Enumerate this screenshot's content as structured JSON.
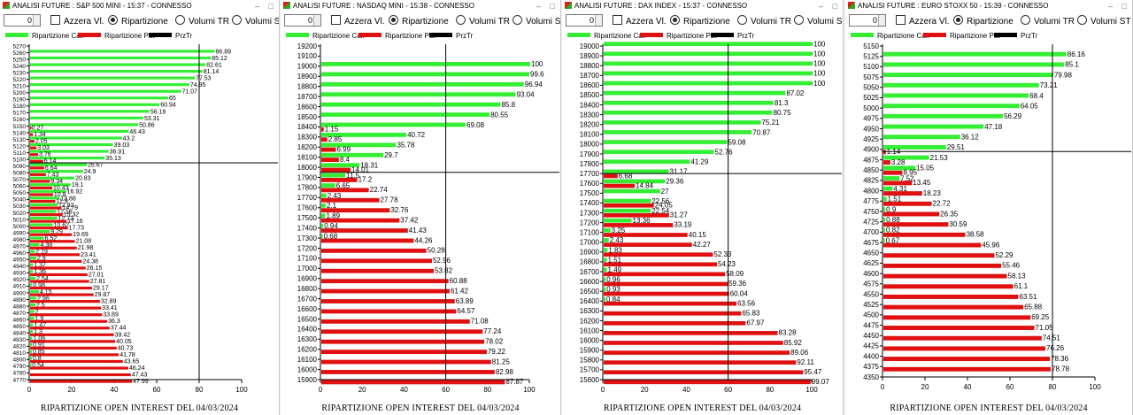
{
  "panels": [
    {
      "title": "ANALISI FUTURE : S&P 500 MINI - 15:37 - CONNESSO",
      "spin_value": "0",
      "cb_azzera": "Azzera Vl.",
      "rb_ripartizione": "Ripartizione",
      "rb_volumi_tr": "Volumi TR",
      "rb_volumi_st": "Volumi ST",
      "legend_call": "Ripartizione Call",
      "legend_put": "Ripartizione Put",
      "legend_prz": "PrzTr",
      "footer": "RIPARTIZIONE OPEN INTEREST DEL 04/03/2024",
      "chart_data": {
        "type": "bar",
        "orientation": "horizontal",
        "categories": [
          "5270",
          "5260",
          "5250",
          "5240",
          "5230",
          "5220",
          "5210",
          "5200",
          "5190",
          "5180",
          "5170",
          "5160",
          "5150",
          "5140",
          "5130",
          "5120",
          "5110",
          "5100",
          "5090",
          "5080",
          "5070",
          "5060",
          "5050",
          "5040",
          "5030",
          "5020",
          "5010",
          "5000",
          "4990",
          "4980",
          "4970",
          "4960",
          "4950",
          "4940",
          "4930",
          "4920",
          "4910",
          "4900",
          "4890",
          "4880",
          "4870",
          "4860",
          "4850",
          "4840",
          "4830",
          "4820",
          "4810",
          "4800",
          "4790",
          "4780",
          "4770"
        ],
        "series": [
          {
            "name": "Ripartizione Call",
            "color": "#33ee33",
            "values": [
              null,
              86.89,
              85.12,
              82.61,
              81.14,
              77.53,
              74.95,
              71.07,
              65,
              60.94,
              56.18,
              53.31,
              50.86,
              46.43,
              43.2,
              39.03,
              36.91,
              35.13,
              26.67,
              24.9,
              20.83,
              19.1,
              16.92,
              13.88,
              12.92,
              12.16,
              12.73,
              10.62,
              9.29,
              6.52,
              4.38,
              2.19,
              2.9,
              1.37,
              1.36,
              2.54,
              0.98,
              4.15,
              2.96,
              2.5,
              2,
              1.9,
              1.47,
              1.3,
              1.06,
              0.91,
              0.85,
              0.8,
              0.54,
              null,
              null
            ]
          },
          {
            "name": "Ripartizione Put",
            "color": "#e01010",
            "values": [
              null,
              null,
              null,
              null,
              null,
              null,
              null,
              null,
              null,
              null,
              null,
              null,
              0.27,
              1.34,
              2.05,
              3.03,
              3.76,
              6.14,
              6.64,
              7.43,
              9.34,
              10.43,
              10.8,
              11.9,
              14.79,
              15.32,
              17.16,
              17.73,
              19.69,
              21.08,
              21.98,
              23.41,
              24.38,
              26.15,
              27.01,
              27.81,
              29.17,
              29.87,
              32.89,
              33.41,
              33.89,
              36.3,
              37.44,
              39.42,
              40.05,
              40.73,
              41.78,
              43.65,
              46.24,
              47.43,
              47.99
            ]
          }
        ],
        "xlim": [
          0,
          100
        ],
        "xticks": [
          0,
          20,
          40,
          60,
          80,
          100
        ],
        "prz_tr": "5095"
      }
    },
    {
      "title": "ANALISI FUTURE : NASDAQ MINI - 15:38 - CONNESSO",
      "spin_value": "0",
      "cb_azzera": "Azzera Vl.",
      "rb_ripartizione": "Ripartizione",
      "rb_volumi_tr": "Volumi TR",
      "rb_volumi_st": "Volumi ST",
      "legend_call": "Ripartizione Call",
      "legend_put": "Ripartizione Put",
      "legend_prz": "PrzTr",
      "footer": "RIPARTIZIONE OPEN INTEREST DEL 04/03/2024",
      "chart_data": {
        "type": "bar",
        "orientation": "horizontal",
        "categories": [
          "19200",
          "19100",
          "19000",
          "18900",
          "18800",
          "18700",
          "18600",
          "18500",
          "18400",
          "18300",
          "18200",
          "18100",
          "18000",
          "17900",
          "17800",
          "17700",
          "17600",
          "17500",
          "17400",
          "17300",
          "17200",
          "17100",
          "17000",
          "16900",
          "16800",
          "16700",
          "16600",
          "16500",
          "16400",
          "16300",
          "16200",
          "16100",
          "16000",
          "15900"
        ],
        "series": [
          {
            "name": "Ripartizione Call",
            "color": "#33ee33",
            "values": [
              null,
              null,
              100,
              99.6,
              96.94,
              93.04,
              85.8,
              80.55,
              69.08,
              40.72,
              35.78,
              29.7,
              18.31,
              11.5,
              6.65,
              2.43,
              2.1,
              1.89,
              0.94,
              0.68,
              null,
              null,
              null,
              null,
              null,
              null,
              null,
              null,
              null,
              null,
              null,
              null,
              null,
              null
            ]
          },
          {
            "name": "Ripartizione Put",
            "color": "#e01010",
            "values": [
              null,
              null,
              null,
              null,
              null,
              null,
              null,
              null,
              1.15,
              2.85,
              6.99,
              8.4,
              14.01,
              17.2,
              22.74,
              27.78,
              32.76,
              37.42,
              41.43,
              44.26,
              50.28,
              52.96,
              53.82,
              60.88,
              61.42,
              63.89,
              64.57,
              71.08,
              77.24,
              78.02,
              79.22,
              81.25,
              82.98,
              87.87
            ]
          }
        ],
        "xlim": [
          0,
          100
        ],
        "xticks": [
          0,
          20,
          40,
          60,
          80,
          100
        ],
        "prz_tr": "17950"
      }
    },
    {
      "title": "ANALISI FUTURE : DAX INDEX - 15:37 - CONNESSO",
      "spin_value": "0",
      "cb_azzera": "Azzera Vl.",
      "rb_ripartizione": "Ripartizione",
      "rb_volumi_tr": "Volumi TR",
      "rb_volumi_st": "Volumi ST",
      "legend_call": "Ripartizione Call",
      "legend_put": "Ripartizione Put",
      "legend_prz": "PrzTr",
      "footer": "RIPARTIZIONE OPEN INTEREST DEL 04/03/2024",
      "chart_data": {
        "type": "bar",
        "orientation": "horizontal",
        "categories": [
          "19000",
          "18900",
          "18800",
          "18700",
          "18600",
          "18500",
          "18400",
          "18300",
          "18200",
          "18100",
          "18000",
          "17900",
          "17800",
          "17700",
          "17600",
          "17500",
          "17400",
          "17300",
          "17200",
          "17100",
          "17000",
          "16900",
          "16800",
          "16700",
          "16600",
          "16500",
          "16400",
          "16300",
          "16200",
          "16100",
          "16000",
          "15900",
          "15800",
          "15700",
          "15600"
        ],
        "series": [
          {
            "name": "Ripartizione Call",
            "color": "#33ee33",
            "values": [
              100,
              100,
              100,
              100,
              100,
              87.02,
              81.3,
              80.75,
              75.21,
              70.87,
              59.08,
              52.76,
              41.29,
              31.17,
              29.36,
              27,
              22.56,
              22.54,
              13.36,
              3.25,
              2.43,
              1.83,
              1.51,
              1.49,
              0.96,
              0.93,
              0.84,
              null,
              null,
              null,
              null,
              null,
              null,
              null,
              null
            ]
          },
          {
            "name": "Ripartizione Put",
            "color": "#e01010",
            "values": [
              null,
              null,
              null,
              null,
              null,
              null,
              null,
              null,
              null,
              null,
              null,
              null,
              null,
              6.68,
              14.84,
              null,
              24.05,
              31.27,
              33.19,
              40.15,
              42.27,
              52.33,
              54.23,
              58.09,
              59.36,
              60.04,
              63.56,
              65.83,
              67.97,
              83.28,
              85.92,
              89.06,
              92.11,
              95.47,
              99.07
            ]
          }
        ],
        "xlim": [
          0,
          100
        ],
        "xticks": [
          0,
          20,
          40,
          60,
          80,
          100
        ],
        "prz_tr": "17700"
      }
    },
    {
      "title": "ANALISI FUTURE : EURO STOXX 50 - 15:39 - CONNESSO",
      "spin_value": "0",
      "cb_azzera": "Azzera Vl.",
      "rb_ripartizione": "Ripartizione",
      "rb_volumi_tr": "Volumi TR",
      "rb_volumi_st": "Volumi ST",
      "legend_call": "Ripartizione Call",
      "legend_put": "Ripartizione Put",
      "legend_prz": "PrzTr",
      "footer": "RIPARTIZIONE OPEN INTEREST DEL 04/03/2024",
      "chart_data": {
        "type": "bar",
        "orientation": "horizontal",
        "categories": [
          "5150",
          "5125",
          "5100",
          "5075",
          "5050",
          "5025",
          "5000",
          "4975",
          "4950",
          "4925",
          "4900",
          "4875",
          "4850",
          "4825",
          "4800",
          "4775",
          "4750",
          "4725",
          "4700",
          "4675",
          "4650",
          "4625",
          "4600",
          "4575",
          "4550",
          "4525",
          "4500",
          "4475",
          "4450",
          "4425",
          "4400",
          "4375",
          "4350"
        ],
        "series": [
          {
            "name": "Ripartizione Call",
            "color": "#33ee33",
            "values": [
              null,
              86.16,
              85.1,
              79.98,
              73.21,
              68.4,
              64.05,
              56.29,
              47.18,
              36.12,
              29.51,
              21.53,
              15.05,
              7.52,
              4.31,
              1.51,
              0.9,
              0.88,
              0.82,
              0.67,
              null,
              null,
              null,
              null,
              null,
              null,
              null,
              null,
              null,
              null,
              null,
              null,
              null
            ]
          },
          {
            "name": "Ripartizione Put",
            "color": "#e01010",
            "values": [
              null,
              null,
              null,
              null,
              null,
              null,
              null,
              null,
              null,
              null,
              1.14,
              3.28,
              8.95,
              13.45,
              18.23,
              22.72,
              26.35,
              30.59,
              38.58,
              45.96,
              52.29,
              55.46,
              58.13,
              61.1,
              63.51,
              65.88,
              69.25,
              71.05,
              74.51,
              76.26,
              78.36,
              78.78,
              null
            ]
          }
        ],
        "xlim": [
          0,
          100
        ],
        "xticks": [
          0,
          20,
          40,
          60,
          80,
          100
        ],
        "prz_tr": "4895"
      }
    }
  ]
}
